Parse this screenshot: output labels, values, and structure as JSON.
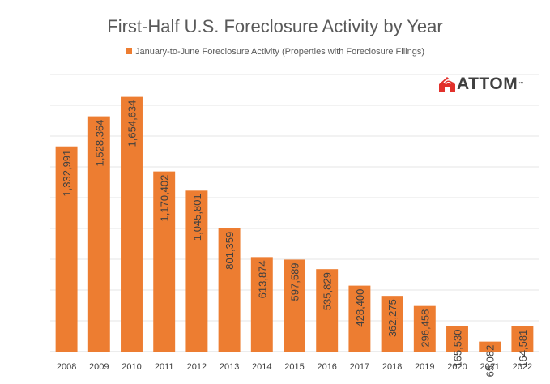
{
  "chart_data": {
    "type": "bar",
    "title": "First-Half U.S. Foreclosure Activity by Year",
    "legend": "January-to-June Foreclosure Activity (Properties with Foreclosure Filings)",
    "categories": [
      "2008",
      "2009",
      "2010",
      "2011",
      "2012",
      "2013",
      "2014",
      "2015",
      "2016",
      "2017",
      "2018",
      "2019",
      "2020",
      "2021",
      "2022"
    ],
    "values": [
      1332991,
      1528364,
      1654634,
      1170402,
      1045801,
      801359,
      613874,
      597589,
      535829,
      428400,
      362275,
      296458,
      165530,
      65082,
      164581
    ],
    "data_labels": [
      "1,332,991",
      "1,528,364",
      "1,654,634",
      "1,170,402",
      "1,045,801",
      "801,359",
      "613,874",
      "597,589",
      "535,829",
      "428,400",
      "362,275",
      "296,458",
      "165,530",
      "65,082",
      "164,581"
    ],
    "ylim": [
      0,
      1800000
    ],
    "y_gridline_step": 200000,
    "grid": true,
    "legend_position": "top",
    "bar_color": "#ED7D31"
  },
  "logo": {
    "text": "ATTOM",
    "tm": "™",
    "text_color": "#404040",
    "mark_color": "#E2312C"
  }
}
